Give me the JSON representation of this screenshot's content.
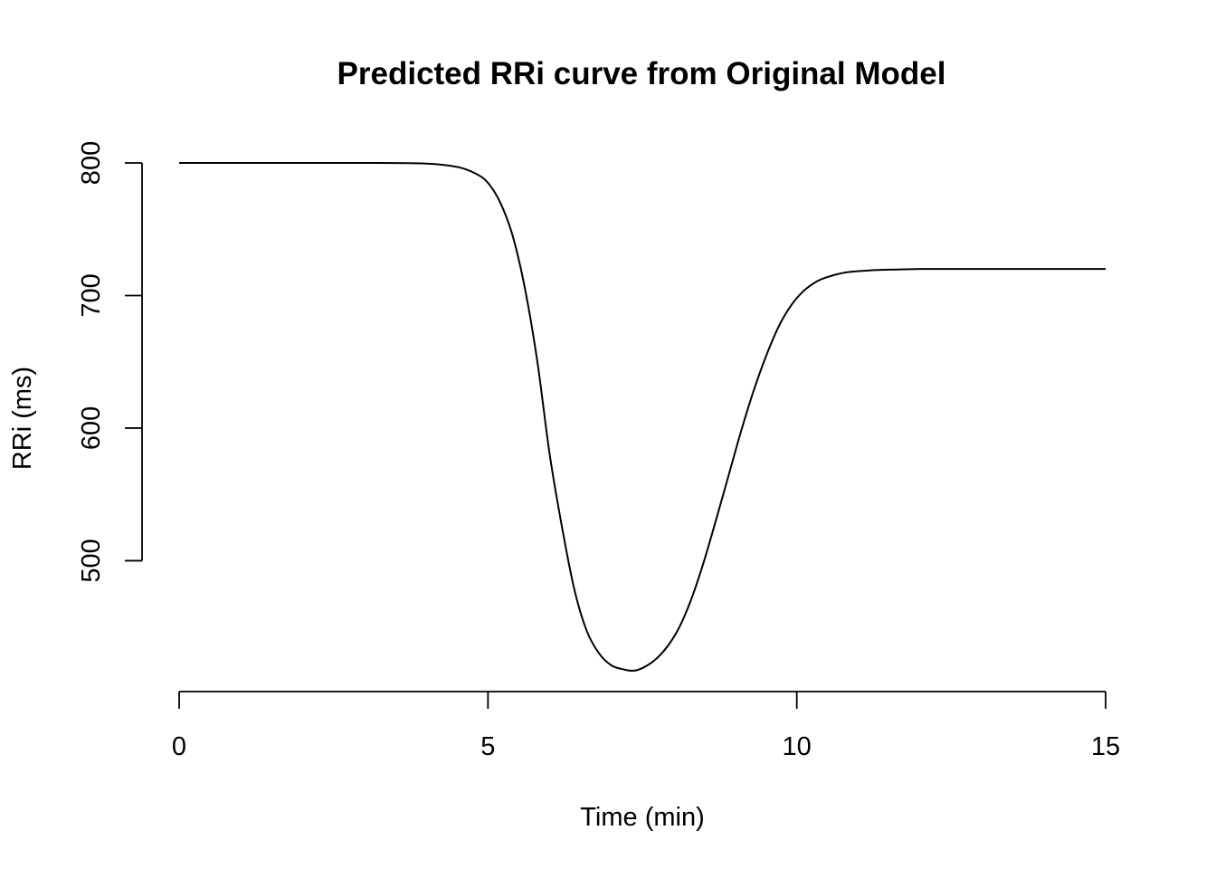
{
  "chart_data": {
    "type": "line",
    "title": "Predicted RRi curve from Original Model",
    "xlabel": "Time (min)",
    "ylabel": "RRi (ms)",
    "xlim": [
      0,
      15
    ],
    "ylim": [
      417,
      800
    ],
    "xticks": [
      0,
      5,
      10,
      15
    ],
    "yticks": [
      500,
      600,
      700,
      800
    ],
    "xtick_labels": [
      "0",
      "5",
      "10",
      "15"
    ],
    "ytick_labels": [
      "500",
      "600",
      "700",
      "800"
    ],
    "grid": false,
    "legend": "none",
    "series": [
      {
        "color": "#000000",
        "x": [
          0,
          1,
          2,
          3,
          4,
          4.5,
          4.8,
          5.0,
          5.2,
          5.4,
          5.6,
          5.8,
          6.0,
          6.2,
          6.4,
          6.6,
          6.8,
          7.0,
          7.2,
          7.35,
          7.5,
          7.7,
          7.9,
          8.1,
          8.3,
          8.5,
          8.7,
          8.9,
          9.1,
          9.3,
          9.5,
          9.7,
          9.9,
          10.1,
          10.3,
          10.5,
          10.8,
          11.2,
          11.6,
          12.0,
          12.5,
          13.0,
          14.0,
          15.0
        ],
        "y": [
          800,
          800,
          800,
          800,
          799.5,
          797,
          792,
          785,
          770,
          745,
          705,
          650,
          580,
          525,
          478,
          447,
          430,
          421,
          418,
          417,
          419,
          425,
          435,
          450,
          472,
          500,
          532,
          565,
          598,
          628,
          654,
          676,
          692,
          703,
          710,
          714,
          717.5,
          719,
          719.6,
          720,
          720,
          720,
          720,
          720
        ]
      }
    ]
  }
}
